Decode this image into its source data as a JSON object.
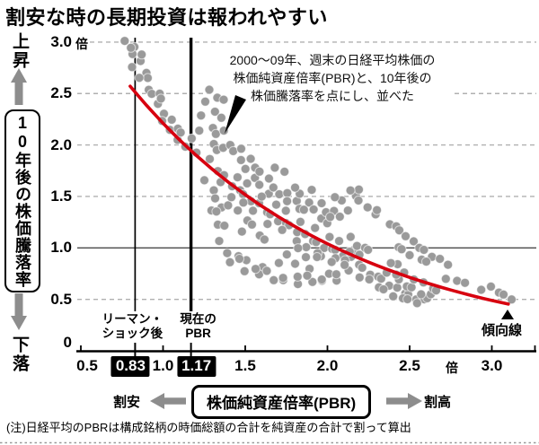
{
  "title": "割安な時の長期投資は報われやすい",
  "note": "(注)日経平均のPBRは構成銘柄の時価総額の合計を純資産の合計で割って算出",
  "annotation": {
    "line1": "2000〜09年、週末の日経平均株価の",
    "line2": "株価純資産倍率(PBR)と、10年後の",
    "line3": "株価騰落率を点にし、並べた"
  },
  "y_axis": {
    "direction_up": "上昇",
    "direction_down": "下落",
    "label": "10年後の株価騰落率",
    "unit": "倍",
    "ticks": [
      {
        "v": 3.0,
        "label": "3.0"
      },
      {
        "v": 2.5,
        "label": "2.5"
      },
      {
        "v": 2.0,
        "label": "2.0"
      },
      {
        "v": 1.5,
        "label": "1.5"
      },
      {
        "v": 1.0,
        "label": "1.0"
      },
      {
        "v": 0.5,
        "label": "0.5"
      },
      {
        "v": 0.0,
        "label": "0"
      }
    ]
  },
  "x_axis": {
    "label": "株価純資産倍率(PBR)",
    "unit": "倍",
    "cheap": "割安",
    "expensive": "割高",
    "ticks": [
      {
        "v": 0.5,
        "label": "0.5"
      },
      {
        "v": 1.0,
        "label": "1.0"
      },
      {
        "v": 1.5,
        "label": "1.5"
      },
      {
        "v": 2.0,
        "label": "2.0"
      },
      {
        "v": 2.5,
        "label": "2.5"
      },
      {
        "v": 3.0,
        "label": "3.0"
      }
    ],
    "markers": [
      {
        "value": 0.83,
        "lines": [
          "リーマン・",
          "ショック後"
        ],
        "box": "0.83",
        "thick": false
      },
      {
        "value": 1.17,
        "lines": [
          "現在の",
          "PBR"
        ],
        "box": "1.17",
        "thick": true
      }
    ]
  },
  "trend": {
    "label": "傾向線",
    "a": 4.7,
    "b": 0.754,
    "p_start": 0.8,
    "p_end": 3.11
  },
  "colors": {
    "trend_red": "#d7000f",
    "point_gray": "#9a9a9a",
    "arrow_gray": "#8d8d8d",
    "grid_gray": "#b0b0b0",
    "solid_line": "#4a4a4a",
    "black": "#000000",
    "box_bg": "#000000",
    "box_fg": "#ffffff"
  },
  "chart_data": {
    "type": "scatter",
    "title": "割安な時の長期投資は報われやすい",
    "xlabel": "株価純資産倍率(PBR)",
    "ylabel": "10年後の株価騰落率",
    "x_range": [
      0.5,
      3.16
    ],
    "y_range": [
      0,
      3.0
    ],
    "grid": "dashed-horizontal",
    "trend_curve": "y = 4.7 * exp(-0.754 * x)",
    "points": [
      [
        0.78,
        2.99
      ],
      [
        0.83,
        2.96
      ],
      [
        0.81,
        2.87
      ],
      [
        0.85,
        2.83
      ],
      [
        0.82,
        2.75
      ],
      [
        0.87,
        2.9
      ],
      [
        0.89,
        2.7
      ],
      [
        0.92,
        2.63
      ],
      [
        0.86,
        2.66
      ],
      [
        0.8,
        2.93
      ],
      [
        0.9,
        2.55
      ],
      [
        0.94,
        2.49
      ],
      [
        0.98,
        2.52
      ],
      [
        0.96,
        2.4
      ],
      [
        1.0,
        2.43
      ],
      [
        1.01,
        2.31
      ],
      [
        0.99,
        2.22
      ],
      [
        1.04,
        2.26
      ],
      [
        1.05,
        2.14
      ],
      [
        1.09,
        2.18
      ],
      [
        1.08,
        2.05
      ],
      [
        1.12,
        2.1
      ],
      [
        1.14,
        1.99
      ],
      [
        1.17,
        2.05
      ],
      [
        1.19,
        1.94
      ],
      [
        1.29,
        2.53
      ],
      [
        1.33,
        2.48
      ],
      [
        1.36,
        2.44
      ],
      [
        1.27,
        2.4
      ],
      [
        1.32,
        2.33
      ],
      [
        1.35,
        2.25
      ],
      [
        1.29,
        2.18
      ],
      [
        1.33,
        2.1
      ],
      [
        1.37,
        2.16
      ],
      [
        1.3,
        2.01
      ],
      [
        1.34,
        1.93
      ],
      [
        1.37,
        1.98
      ],
      [
        1.28,
        1.85
      ],
      [
        1.32,
        1.76
      ],
      [
        1.26,
        1.65
      ],
      [
        1.35,
        1.66
      ],
      [
        1.3,
        1.56
      ],
      [
        1.33,
        1.46
      ],
      [
        1.36,
        1.4
      ],
      [
        1.29,
        1.35
      ],
      [
        1.32,
        1.24
      ],
      [
        1.24,
        2.28
      ],
      [
        1.22,
        2.16
      ],
      [
        1.4,
        2.0
      ],
      [
        1.44,
        1.92
      ],
      [
        1.48,
        1.97
      ],
      [
        1.47,
        1.84
      ],
      [
        1.52,
        1.88
      ],
      [
        1.51,
        1.76
      ],
      [
        1.56,
        1.8
      ],
      [
        1.55,
        1.68
      ],
      [
        1.6,
        1.72
      ],
      [
        1.59,
        1.62
      ],
      [
        1.64,
        1.66
      ],
      [
        1.63,
        1.54
      ],
      [
        1.68,
        1.58
      ],
      [
        1.68,
        1.8
      ],
      [
        1.73,
        1.74
      ],
      [
        1.72,
        1.5
      ],
      [
        1.76,
        1.54
      ],
      [
        1.75,
        1.44
      ],
      [
        1.8,
        1.47
      ],
      [
        1.84,
        1.52
      ],
      [
        1.83,
        1.4
      ],
      [
        1.88,
        1.44
      ],
      [
        1.87,
        1.35
      ],
      [
        1.92,
        1.38
      ],
      [
        1.96,
        1.42
      ],
      [
        1.95,
        1.3
      ],
      [
        2.0,
        1.34
      ],
      [
        2.04,
        1.38
      ],
      [
        1.99,
        1.24
      ],
      [
        2.03,
        1.28
      ],
      [
        2.08,
        1.31
      ],
      [
        2.12,
        1.35
      ],
      [
        2.16,
        1.52
      ],
      [
        2.2,
        1.56
      ],
      [
        2.14,
        1.58
      ],
      [
        2.18,
        1.46
      ],
      [
        2.1,
        1.44
      ],
      [
        2.05,
        1.5
      ],
      [
        1.9,
        1.55
      ],
      [
        1.79,
        1.6
      ],
      [
        1.38,
        1.7
      ],
      [
        1.42,
        1.62
      ],
      [
        1.46,
        1.56
      ],
      [
        1.5,
        1.5
      ],
      [
        1.54,
        1.46
      ],
      [
        1.58,
        1.42
      ],
      [
        1.62,
        1.36
      ],
      [
        1.66,
        1.32
      ],
      [
        1.7,
        1.28
      ],
      [
        1.74,
        1.24
      ],
      [
        1.78,
        1.2
      ],
      [
        1.82,
        1.16
      ],
      [
        1.86,
        1.12
      ],
      [
        1.9,
        1.08
      ],
      [
        1.94,
        1.05
      ],
      [
        1.98,
        1.02
      ],
      [
        2.02,
        0.99
      ],
      [
        2.06,
        0.96
      ],
      [
        2.1,
        0.93
      ],
      [
        2.14,
        0.9
      ],
      [
        1.44,
        1.7
      ],
      [
        1.52,
        1.62
      ],
      [
        1.6,
        1.52
      ],
      [
        1.68,
        1.42
      ],
      [
        1.76,
        1.34
      ],
      [
        1.84,
        1.26
      ],
      [
        1.92,
        1.18
      ],
      [
        2.0,
        1.12
      ],
      [
        2.08,
        1.06
      ],
      [
        2.16,
        1.0
      ],
      [
        1.48,
        1.44
      ],
      [
        1.56,
        1.34
      ],
      [
        1.64,
        1.24
      ],
      [
        1.72,
        1.16
      ],
      [
        1.8,
        1.08
      ],
      [
        1.88,
        1.0
      ],
      [
        1.96,
        0.94
      ],
      [
        2.04,
        0.9
      ],
      [
        2.12,
        0.86
      ],
      [
        1.4,
        1.42
      ],
      [
        1.45,
        1.35
      ],
      [
        1.5,
        1.28
      ],
      [
        1.55,
        1.22
      ],
      [
        1.48,
        1.18
      ],
      [
        1.58,
        1.12
      ],
      [
        1.63,
        1.06
      ],
      [
        1.42,
        1.5
      ],
      [
        1.32,
        1.34
      ],
      [
        1.36,
        1.23
      ],
      [
        1.35,
        1.06
      ],
      [
        1.39,
        0.97
      ],
      [
        1.45,
        0.92
      ],
      [
        1.52,
        0.86
      ],
      [
        1.61,
        0.82
      ],
      [
        1.7,
        0.84
      ],
      [
        1.79,
        0.86
      ],
      [
        1.9,
        0.79
      ],
      [
        2.01,
        0.77
      ],
      [
        2.12,
        0.78
      ],
      [
        1.42,
        0.84
      ],
      [
        1.5,
        0.78
      ],
      [
        1.58,
        0.73
      ],
      [
        1.66,
        0.7
      ],
      [
        1.74,
        0.68
      ],
      [
        1.82,
        0.67
      ],
      [
        1.9,
        0.67
      ],
      [
        1.98,
        0.66
      ],
      [
        2.06,
        0.69
      ],
      [
        1.46,
        0.88
      ],
      [
        1.55,
        0.81
      ],
      [
        1.64,
        0.77
      ],
      [
        1.73,
        0.73
      ],
      [
        1.81,
        0.72
      ],
      [
        1.89,
        0.71
      ],
      [
        1.97,
        0.7
      ],
      [
        2.05,
        0.73
      ],
      [
        1.74,
        0.95
      ],
      [
        1.83,
        0.99
      ],
      [
        1.94,
        0.97
      ],
      [
        1.86,
        0.91
      ],
      [
        1.95,
        0.89
      ],
      [
        2.03,
        0.87
      ],
      [
        2.1,
        0.82
      ],
      [
        2.18,
        0.85
      ],
      [
        2.22,
        0.8
      ],
      [
        2.26,
        0.76
      ],
      [
        2.3,
        0.72
      ],
      [
        2.34,
        0.68
      ],
      [
        2.38,
        0.64
      ],
      [
        2.42,
        0.6
      ],
      [
        2.46,
        0.57
      ],
      [
        2.5,
        0.54
      ],
      [
        2.54,
        0.52
      ],
      [
        2.58,
        0.5
      ],
      [
        2.62,
        0.49
      ],
      [
        2.2,
        0.72
      ],
      [
        2.25,
        0.68
      ],
      [
        2.3,
        0.63
      ],
      [
        2.35,
        0.59
      ],
      [
        2.4,
        0.55
      ],
      [
        2.45,
        0.51
      ],
      [
        2.5,
        0.48
      ],
      [
        2.55,
        0.47
      ],
      [
        2.43,
        0.68
      ],
      [
        2.47,
        0.64
      ],
      [
        2.52,
        0.61
      ],
      [
        2.57,
        0.57
      ],
      [
        2.62,
        0.55
      ],
      [
        2.48,
        0.74
      ],
      [
        2.53,
        0.7
      ],
      [
        2.58,
        0.65
      ],
      [
        2.63,
        0.62
      ],
      [
        2.67,
        0.58
      ],
      [
        2.36,
        0.78
      ],
      [
        2.41,
        0.74
      ],
      [
        2.44,
        0.82
      ],
      [
        2.39,
        0.86
      ],
      [
        2.24,
        1.38
      ],
      [
        2.28,
        1.34
      ],
      [
        2.31,
        1.36
      ],
      [
        2.38,
        1.25
      ],
      [
        2.41,
        1.21
      ],
      [
        2.45,
        1.15
      ],
      [
        2.48,
        1.12
      ],
      [
        2.52,
        1.05
      ],
      [
        2.42,
        1.02
      ],
      [
        2.46,
        0.98
      ],
      [
        2.5,
        0.95
      ],
      [
        2.55,
        1.0
      ],
      [
        2.6,
        0.96
      ],
      [
        2.64,
        0.92
      ],
      [
        2.68,
        0.88
      ],
      [
        2.72,
        0.85
      ],
      [
        2.15,
        1.1
      ],
      [
        2.18,
        1.04
      ],
      [
        2.22,
        1.0
      ],
      [
        2.26,
        0.96
      ],
      [
        2.14,
        0.97
      ],
      [
        2.19,
        0.92
      ],
      [
        2.56,
        0.9
      ],
      [
        2.61,
        0.86
      ],
      [
        2.72,
        0.72
      ],
      [
        2.78,
        0.68
      ],
      [
        2.85,
        0.64
      ],
      [
        2.94,
        0.6
      ],
      [
        2.99,
        0.61
      ],
      [
        3.03,
        0.58
      ],
      [
        3.08,
        0.54
      ],
      [
        3.12,
        0.52
      ]
    ]
  }
}
